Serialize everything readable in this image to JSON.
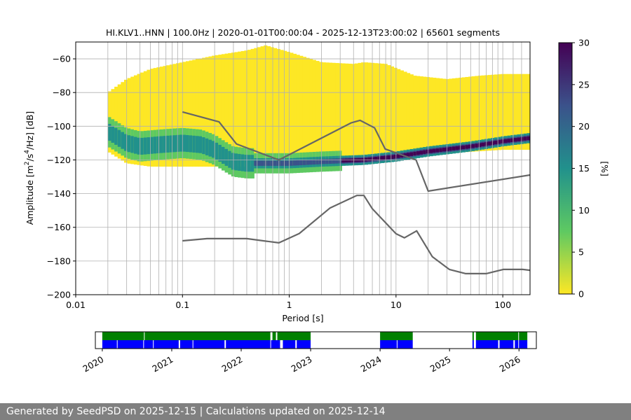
{
  "chart_data": [
    {
      "type": "heatmap",
      "title": "HI.KLV1..HNN | 100.0Hz | 2020-01-01T00:00:04 - 2025-12-13T23:00:02 | 65601 segments",
      "xlabel": "Period [s]",
      "ylabel_parts": [
        "Amplitude [m",
        "2",
        "/s",
        "4",
        "/Hz] [dB]"
      ],
      "x_scale": "log",
      "xlim": [
        0.01,
        180
      ],
      "ylim": [
        -200,
        -50
      ],
      "x_ticks": [
        {
          "value": 0.01,
          "label": "0.01"
        },
        {
          "value": 0.1,
          "label": "0.1"
        },
        {
          "value": 1,
          "label": "1"
        },
        {
          "value": 10,
          "label": "10"
        },
        {
          "value": 100,
          "label": "100"
        }
      ],
      "y_ticks": [
        -60,
        -80,
        -100,
        -120,
        -140,
        -160,
        -180,
        -200
      ],
      "y_tick_labels": [
        "−60",
        "−80",
        "−100",
        "−120",
        "−140",
        "−160",
        "−180",
        "−200"
      ],
      "grid": true,
      "vertical_period_gridlines": [
        0.02,
        0.03,
        0.04,
        0.05,
        0.06,
        0.07,
        0.08,
        0.09,
        0.1,
        0.2,
        0.3,
        0.4,
        0.5,
        0.6,
        0.7,
        0.8,
        0.9,
        1,
        2,
        3,
        4,
        5,
        6,
        7,
        8,
        9,
        10,
        20,
        30,
        40,
        50,
        60,
        70,
        80,
        90,
        100,
        125,
        150
      ],
      "colorbar": {
        "label": "[%]",
        "range": [
          0,
          30
        ],
        "ticks": [
          0,
          5,
          10,
          15,
          20,
          25,
          30
        ],
        "colormap": "viridis_r",
        "colors": [
          "#fde725",
          "#5ec962",
          "#21918c",
          "#3b528b",
          "#440154"
        ]
      },
      "psd_mode": {
        "period": [
          0.02,
          0.03,
          0.04,
          0.06,
          0.1,
          0.15,
          0.2,
          0.25,
          0.3,
          0.4,
          0.6,
          0.8,
          1,
          2,
          5,
          10,
          20,
          50,
          100,
          180
        ],
        "amplitude": [
          -103,
          -110,
          -112,
          -111,
          -110,
          -111,
          -114,
          -118,
          -121,
          -122,
          -122,
          -122,
          -122,
          -121,
          -120,
          -118,
          -115,
          -112,
          -109,
          -107
        ]
      },
      "psd_upper_envelope": {
        "period": [
          0.02,
          0.03,
          0.05,
          0.1,
          0.2,
          0.4,
          0.6,
          1,
          2,
          4,
          5,
          8,
          15,
          30,
          60,
          100,
          180
        ],
        "amplitude": [
          -80,
          -72,
          -66,
          -62,
          -58,
          -55,
          -52,
          -56,
          -62,
          -63,
          -62,
          -63,
          -70,
          -72,
          -70,
          -69,
          -69
        ]
      },
      "psd_lower_envelope": {
        "period": [
          0.02,
          0.03,
          0.05,
          0.1,
          0.2,
          0.4,
          0.6,
          1,
          2,
          5,
          10,
          30,
          100,
          180
        ],
        "amplitude": [
          -115,
          -122,
          -124,
          -124,
          -124,
          -124,
          -124,
          -123,
          -122,
          -121,
          -119,
          -116,
          -114,
          -114
        ]
      },
      "series": [
        {
          "name": "NHNM",
          "color": "#666666",
          "x": [
            0.1,
            0.22,
            0.32,
            0.8,
            3.8,
            4.6,
            6.3,
            7.9,
            15.4,
            20.0,
            354.8
          ],
          "y": [
            -91.5,
            -97.4,
            -110.5,
            -120.0,
            -98.0,
            -96.5,
            -101.0,
            -113.5,
            -120.0,
            -138.5,
            -126.0
          ]
        },
        {
          "name": "NLNM",
          "color": "#666666",
          "x": [
            0.1,
            0.17,
            0.4,
            0.8,
            1.24,
            2.4,
            4.3,
            5.0,
            6.0,
            10.0,
            12.0,
            15.6,
            21.9,
            31.6,
            45.0,
            70.0,
            101.0,
            154.0,
            328.0
          ],
          "y": [
            -168.0,
            -166.7,
            -166.7,
            -169.2,
            -163.7,
            -148.6,
            -141.1,
            -141.1,
            -149.0,
            -163.8,
            -166.2,
            -162.1,
            -177.5,
            -185.0,
            -187.5,
            -187.5,
            -185.0,
            -185.0,
            -187.5
          ]
        }
      ]
    },
    {
      "type": "timeline",
      "x_ticks": [
        "2020",
        "2021",
        "2022",
        "2023",
        "2024",
        "2025",
        "2026"
      ],
      "xlim": [
        2019.9,
        2026.25
      ],
      "series": [
        {
          "row": "upper",
          "color": "#008000",
          "intervals": [
            [
              2020.0,
              2020.6
            ],
            [
              2020.61,
              2022.42
            ],
            [
              2022.45,
              2022.5
            ],
            [
              2022.52,
              2023.0
            ],
            [
              2024.0,
              2024.47
            ],
            [
              2025.33,
              2025.35
            ],
            [
              2025.38,
              2025.99
            ],
            [
              2026.0,
              2026.12
            ]
          ]
        },
        {
          "row": "lower",
          "color": "#0000ff",
          "intervals": [
            [
              2020.0,
              2020.21
            ],
            [
              2020.22,
              2020.59
            ],
            [
              2020.6,
              2020.73
            ],
            [
              2020.74,
              2021.1
            ],
            [
              2021.12,
              2021.3
            ],
            [
              2021.31,
              2021.76
            ],
            [
              2021.78,
              2022.42
            ],
            [
              2022.43,
              2022.56
            ],
            [
              2022.6,
              2022.78
            ],
            [
              2022.8,
              2023.0
            ],
            [
              2024.0,
              2024.24
            ],
            [
              2024.25,
              2024.47
            ],
            [
              2025.33,
              2025.35
            ],
            [
              2025.38,
              2025.7
            ],
            [
              2025.72,
              2025.92
            ],
            [
              2025.94,
              2025.99
            ],
            [
              2026.0,
              2026.12
            ]
          ]
        }
      ]
    }
  ],
  "footer": {
    "text": "Generated by SeedPSD on 2025-12-15 | Calculations updated on 2025-12-14"
  }
}
